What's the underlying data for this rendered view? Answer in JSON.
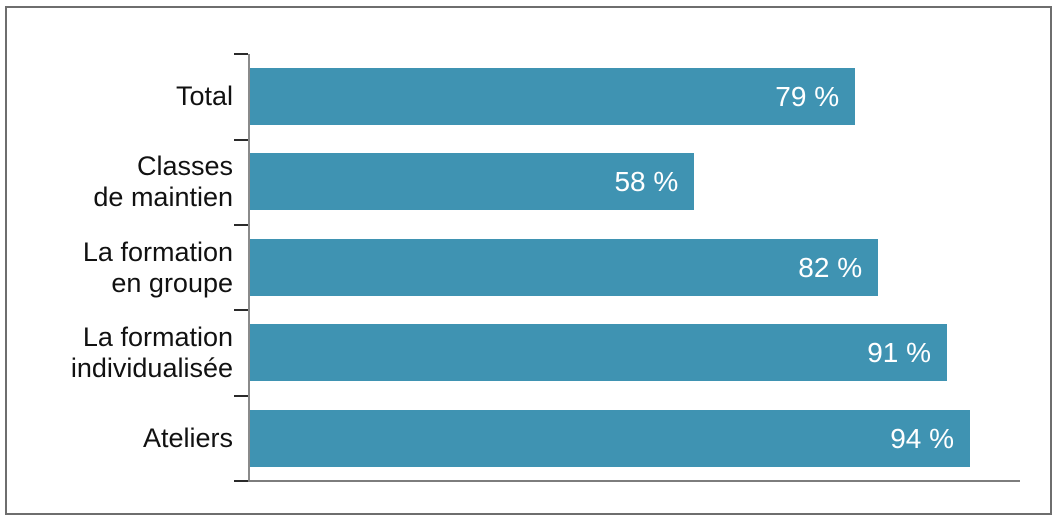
{
  "chart_data": {
    "type": "bar",
    "orientation": "horizontal",
    "title": "",
    "xlabel": "",
    "ylabel": "",
    "xlim": [
      0,
      100
    ],
    "grid": false,
    "legend_position": "none",
    "categories": [
      "Total",
      "Classes\nde maintien",
      "La formation\nen groupe",
      "La formation\nindividualisée",
      "Ateliers"
    ],
    "values": [
      79,
      58,
      82,
      91,
      94
    ],
    "value_labels": [
      "79 %",
      "58 %",
      "82 %",
      "91 %",
      "94 %"
    ],
    "colors": {
      "bar_fill": "#3f93b2",
      "value_label_text": "#ffffff",
      "category_label_text": "#111111",
      "axis_line": "#8a8a8a",
      "tick_mark": "#2a2a2a",
      "frame_border": "#6e6e6e",
      "background": "#ffffff"
    }
  }
}
